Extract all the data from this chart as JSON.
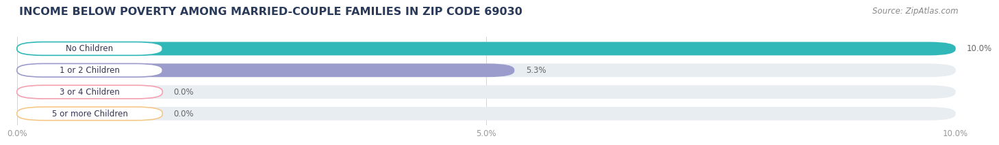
{
  "title": "INCOME BELOW POVERTY AMONG MARRIED-COUPLE FAMILIES IN ZIP CODE 69030",
  "source": "Source: ZipAtlas.com",
  "categories": [
    "No Children",
    "1 or 2 Children",
    "3 or 4 Children",
    "5 or more Children"
  ],
  "values": [
    10.0,
    5.3,
    0.0,
    0.0
  ],
  "bar_colors": [
    "#30b8b8",
    "#9b9bcc",
    "#f5a0b0",
    "#f5c888"
  ],
  "xlim": [
    0,
    10.0
  ],
  "xticklabels": [
    "0.0%",
    "5.0%",
    "10.0%"
  ],
  "background_color": "#ffffff",
  "bar_bg_color": "#e8edf2",
  "title_color": "#2a3a5a",
  "title_fontsize": 11.5,
  "source_fontsize": 8.5,
  "label_fontsize": 8.5,
  "value_fontsize": 8.5,
  "tick_color": "#999999",
  "value_color": "#666666"
}
